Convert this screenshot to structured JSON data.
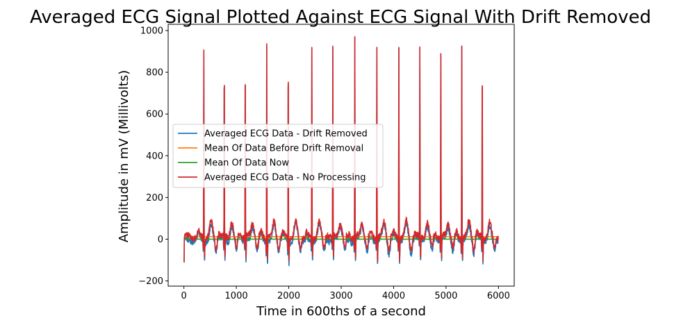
{
  "chart_data": {
    "type": "line",
    "title": "Averaged ECG Signal Plotted Against ECG Signal With Drift Removed",
    "xlabel": "Time in 600ths of a second",
    "ylabel": "Amplitude in mV (Millivolts)",
    "xlim": [
      -300,
      6300
    ],
    "ylim": [
      -225,
      1030
    ],
    "xticks": [
      0,
      1000,
      2000,
      3000,
      4000,
      5000,
      6000
    ],
    "yticks": [
      -200,
      0,
      200,
      400,
      600,
      800,
      1000
    ],
    "grid": false,
    "legend_position": "center-left",
    "r_peaks": {
      "x": [
        380,
        770,
        1170,
        1580,
        1990,
        2440,
        2840,
        3260,
        3680,
        4100,
        4500,
        4900,
        5300,
        5690
      ],
      "y": [
        905,
        905,
        915,
        945,
        935,
        910,
        920,
        975,
        935,
        925,
        910,
        885,
        935,
        915
      ]
    },
    "series": [
      {
        "name": "Averaged ECG Data - Drift Removed",
        "color": "#1f77b4",
        "x_range": [
          0,
          6000
        ],
        "baseline": 0
      },
      {
        "name": "Mean Of Data Before Drift Removal",
        "color": "#ff7f0e",
        "x_range": [
          0,
          6000
        ],
        "values": [
          12,
          12
        ]
      },
      {
        "name": "Mean Of Data Now",
        "color": "#2ca02c",
        "x_range": [
          0,
          6000
        ],
        "values": [
          0,
          0
        ]
      },
      {
        "name": "Averaged ECG Data - No Processing",
        "color": "#d62728",
        "x_range": [
          0,
          6000
        ],
        "baseline": 12
      }
    ]
  }
}
